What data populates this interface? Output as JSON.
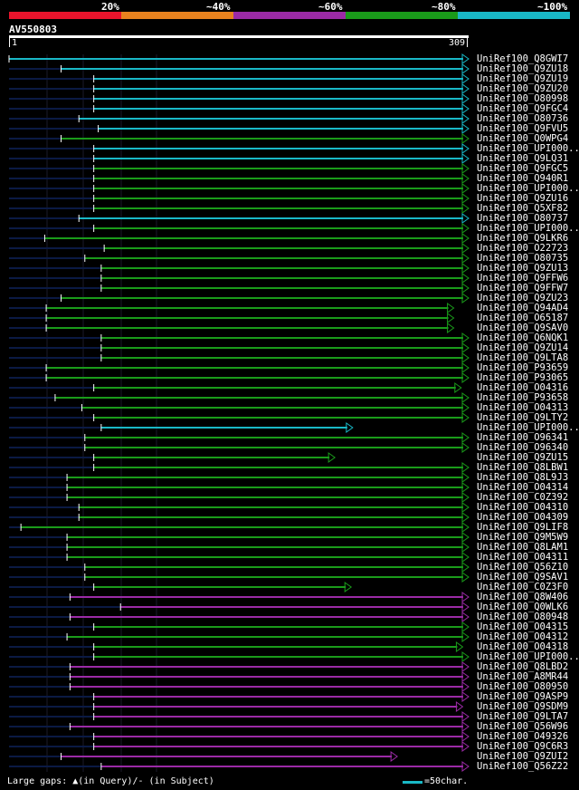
{
  "legend": {
    "labels": [
      "20%",
      "~40%",
      "~60%",
      "~80%",
      "~100%"
    ],
    "colors": [
      "#e8142c",
      "#e8821e",
      "#9b2aa6",
      "#1a9b1a",
      "#19b8c6"
    ]
  },
  "query": {
    "name": "AV550803",
    "start": "1",
    "end": "309",
    "length": 309
  },
  "footer": {
    "gaps": "Large gaps: ▲(in Query)/- (in Subject)",
    "scale": "=50char."
  },
  "colors": {
    "cyan": "#19b8c6",
    "green": "#1a9b1a",
    "purple": "#9b2aa6",
    "dim": "#0b1a44",
    "tick": "#ffffff"
  },
  "hits": [
    {
      "label": "UniRef100_Q8GWI7",
      "start": 1,
      "end": 309,
      "color": "cyan"
    },
    {
      "label": "UniRef100_Q9ZU18",
      "start": 36,
      "end": 309,
      "color": "cyan"
    },
    {
      "label": "UniRef100_Q9ZU19",
      "start": 58,
      "end": 309,
      "color": "cyan"
    },
    {
      "label": "UniRef100_Q9ZU20",
      "start": 58,
      "end": 309,
      "color": "cyan"
    },
    {
      "label": "UniRef100_O80998",
      "start": 58,
      "end": 309,
      "color": "cyan"
    },
    {
      "label": "UniRef100_Q9FGC4",
      "start": 58,
      "end": 309,
      "color": "cyan"
    },
    {
      "label": "UniRef100_O80736",
      "start": 48,
      "end": 309,
      "color": "cyan"
    },
    {
      "label": "UniRef100_Q9FVU5",
      "start": 61,
      "end": 309,
      "color": "cyan"
    },
    {
      "label": "UniRef100_Q0WPG4",
      "start": 36,
      "end": 309,
      "color": "green"
    },
    {
      "label": "UniRef100_UPI000...",
      "start": 58,
      "end": 309,
      "color": "cyan"
    },
    {
      "label": "UniRef100_Q9LQ31",
      "start": 58,
      "end": 309,
      "color": "cyan"
    },
    {
      "label": "UniRef100_Q9FGC5",
      "start": 58,
      "end": 309,
      "color": "green"
    },
    {
      "label": "UniRef100_Q940R1",
      "start": 58,
      "end": 309,
      "color": "green"
    },
    {
      "label": "UniRef100_UPI000...",
      "start": 58,
      "end": 309,
      "color": "green"
    },
    {
      "label": "UniRef100_Q9ZU16",
      "start": 58,
      "end": 309,
      "color": "green"
    },
    {
      "label": "UniRef100_Q5XF82",
      "start": 58,
      "end": 309,
      "color": "green"
    },
    {
      "label": "UniRef100_O80737",
      "start": 48,
      "end": 309,
      "color": "cyan"
    },
    {
      "label": "UniRef100_UPI000...",
      "start": 58,
      "end": 309,
      "color": "green"
    },
    {
      "label": "UniRef100_Q9LKR6",
      "start": 25,
      "end": 309,
      "color": "green"
    },
    {
      "label": "UniRef100_O22723",
      "start": 65,
      "end": 309,
      "color": "green"
    },
    {
      "label": "UniRef100_O80735",
      "start": 52,
      "end": 309,
      "color": "green"
    },
    {
      "label": "UniRef100_Q9ZU13",
      "start": 63,
      "end": 309,
      "color": "green"
    },
    {
      "label": "UniRef100_Q9FFW6",
      "start": 63,
      "end": 309,
      "color": "green"
    },
    {
      "label": "UniRef100_Q9FFW7",
      "start": 63,
      "end": 309,
      "color": "green"
    },
    {
      "label": "UniRef100_Q9ZU23",
      "start": 36,
      "end": 309,
      "color": "green"
    },
    {
      "label": "UniRef100_Q94AD4",
      "start": 26,
      "end": 299,
      "color": "green"
    },
    {
      "label": "UniRef100_O65187",
      "start": 26,
      "end": 299,
      "color": "green"
    },
    {
      "label": "UniRef100_Q9SAV0",
      "start": 26,
      "end": 299,
      "color": "green"
    },
    {
      "label": "UniRef100_Q6NQK1",
      "start": 63,
      "end": 309,
      "color": "green"
    },
    {
      "label": "UniRef100_Q9ZU14",
      "start": 63,
      "end": 309,
      "color": "green"
    },
    {
      "label": "UniRef100_Q9LTA8",
      "start": 63,
      "end": 309,
      "color": "green"
    },
    {
      "label": "UniRef100_P93659",
      "start": 26,
      "end": 309,
      "color": "green"
    },
    {
      "label": "UniRef100_P93065",
      "start": 26,
      "end": 309,
      "color": "green"
    },
    {
      "label": "UniRef100_O04316",
      "start": 58,
      "end": 304,
      "color": "green"
    },
    {
      "label": "UniRef100_P93658",
      "start": 32,
      "end": 309,
      "color": "green"
    },
    {
      "label": "UniRef100_O04313",
      "start": 50,
      "end": 309,
      "color": "green"
    },
    {
      "label": "UniRef100_Q9LTY2",
      "start": 58,
      "end": 309,
      "color": "green"
    },
    {
      "label": "UniRef100_UPI000...",
      "start": 63,
      "end": 231,
      "color": "cyan"
    },
    {
      "label": "UniRef100_O96341",
      "start": 52,
      "end": 309,
      "color": "green"
    },
    {
      "label": "UniRef100_O96340",
      "start": 52,
      "end": 309,
      "color": "green"
    },
    {
      "label": "UniRef100_Q9ZU15",
      "start": 58,
      "end": 219,
      "color": "green"
    },
    {
      "label": "UniRef100_Q8LBW1",
      "start": 58,
      "end": 309,
      "color": "green"
    },
    {
      "label": "UniRef100_Q8L9J3",
      "start": 40,
      "end": 309,
      "color": "green"
    },
    {
      "label": "UniRef100_O04314",
      "start": 40,
      "end": 309,
      "color": "green"
    },
    {
      "label": "UniRef100_C0Z392",
      "start": 40,
      "end": 309,
      "color": "green"
    },
    {
      "label": "UniRef100_O04310",
      "start": 48,
      "end": 309,
      "color": "green"
    },
    {
      "label": "UniRef100_O04309",
      "start": 48,
      "end": 309,
      "color": "green"
    },
    {
      "label": "UniRef100_Q9LIF8",
      "start": 9,
      "end": 309,
      "color": "green"
    },
    {
      "label": "UniRef100_Q9M5W9",
      "start": 40,
      "end": 309,
      "color": "green"
    },
    {
      "label": "UniRef100_Q8LAM1",
      "start": 40,
      "end": 309,
      "color": "green"
    },
    {
      "label": "UniRef100_O04311",
      "start": 40,
      "end": 309,
      "color": "green"
    },
    {
      "label": "UniRef100_Q56Z10",
      "start": 52,
      "end": 309,
      "color": "green"
    },
    {
      "label": "UniRef100_Q9SAV1",
      "start": 52,
      "end": 309,
      "color": "green"
    },
    {
      "label": "UniRef100_C0Z3F0",
      "start": 58,
      "end": 230,
      "color": "green"
    },
    {
      "label": "UniRef100_Q8W406",
      "start": 42,
      "end": 309,
      "color": "purple"
    },
    {
      "label": "UniRef100_Q0WLK6",
      "start": 76,
      "end": 309,
      "color": "purple"
    },
    {
      "label": "UniRef100_O80948",
      "start": 42,
      "end": 309,
      "color": "purple"
    },
    {
      "label": "UniRef100_O04315",
      "start": 58,
      "end": 309,
      "color": "green"
    },
    {
      "label": "UniRef100_O04312",
      "start": 40,
      "end": 309,
      "color": "green"
    },
    {
      "label": "UniRef100_O04318",
      "start": 58,
      "end": 305,
      "color": "green"
    },
    {
      "label": "UniRef100_UPI000...",
      "start": 58,
      "end": 309,
      "color": "green"
    },
    {
      "label": "UniRef100_Q8LBD2",
      "start": 42,
      "end": 309,
      "color": "purple"
    },
    {
      "label": "UniRef100_A8MR44",
      "start": 42,
      "end": 309,
      "color": "purple"
    },
    {
      "label": "UniRef100_O80950",
      "start": 42,
      "end": 309,
      "color": "purple"
    },
    {
      "label": "UniRef100_Q9ASP9",
      "start": 58,
      "end": 309,
      "color": "purple"
    },
    {
      "label": "UniRef100_Q9SDM9",
      "start": 58,
      "end": 305,
      "color": "purple"
    },
    {
      "label": "UniRef100_Q9LTA7",
      "start": 58,
      "end": 309,
      "color": "purple"
    },
    {
      "label": "UniRef100_Q56W96",
      "start": 42,
      "end": 309,
      "color": "purple"
    },
    {
      "label": "UniRef100_O49326",
      "start": 58,
      "end": 309,
      "color": "purple"
    },
    {
      "label": "UniRef100_Q9C6R3",
      "start": 58,
      "end": 309,
      "color": "purple"
    },
    {
      "label": "UniRef100_Q9ZUI2",
      "start": 36,
      "end": 261,
      "color": "purple"
    },
    {
      "label": "UniRef100_Q56Z22",
      "start": 63,
      "end": 309,
      "color": "purple"
    }
  ]
}
